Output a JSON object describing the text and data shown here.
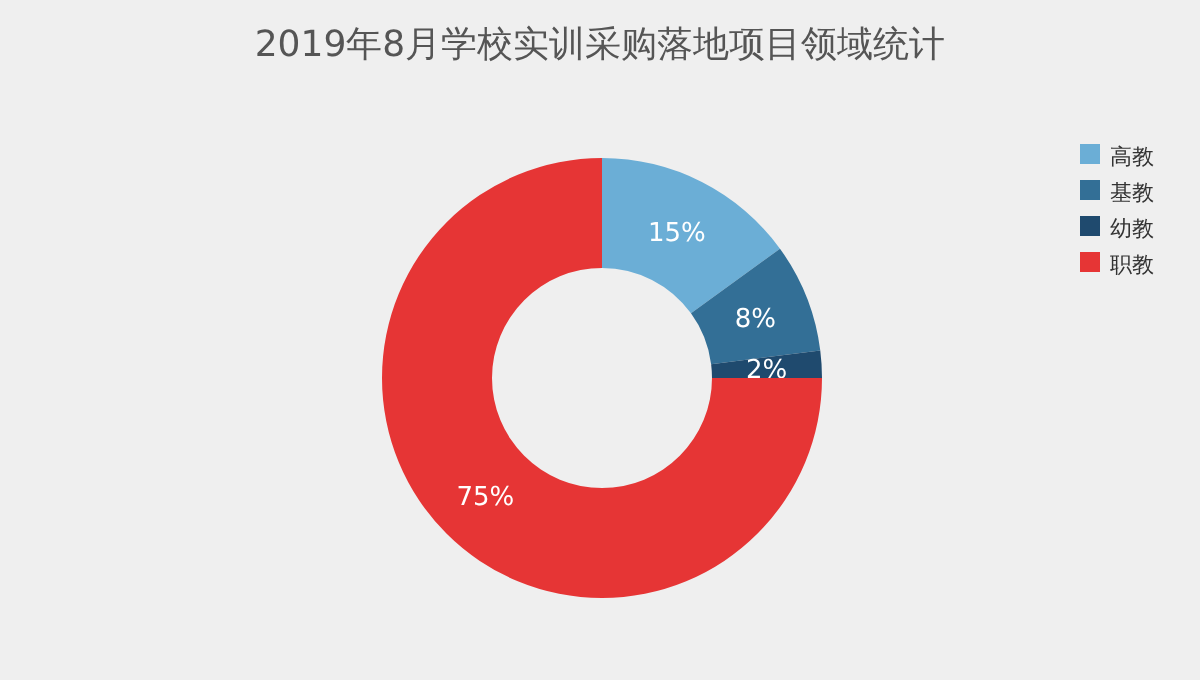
{
  "chart_data": {
    "type": "donut",
    "title": "2019年8月学校实训采购落地项目领域统计",
    "categories": [
      "高教",
      "基教",
      "幼教",
      "职教"
    ],
    "values": [
      15,
      8,
      2,
      75
    ],
    "colors": [
      "#6baed6",
      "#336f96",
      "#1f4a6e",
      "#e63535"
    ],
    "value_labels": [
      "15%",
      "8%",
      "2%",
      "75%"
    ],
    "legend": "right"
  }
}
